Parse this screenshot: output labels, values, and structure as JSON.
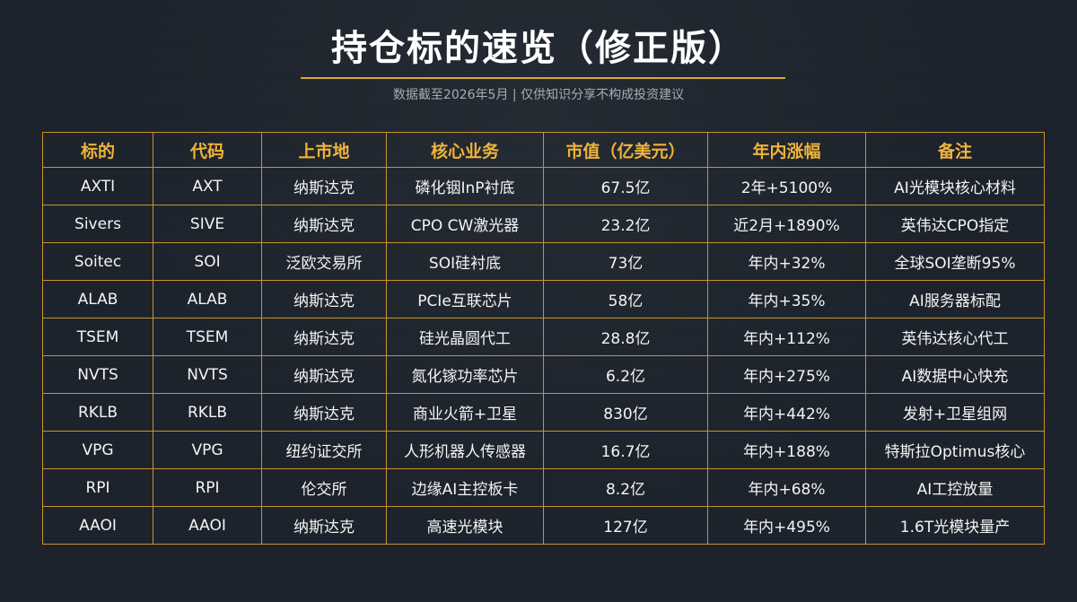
{
  "header": {
    "title": "持仓标的速览（修正版）",
    "subtitle": "数据截至2026年5月 | 仅供知识分享不构成投资建议"
  },
  "table": {
    "columns": [
      "标的",
      "代码",
      "上市地",
      "核心业务",
      "市值（亿美元）",
      "年内涨幅",
      "备注"
    ],
    "rows": [
      [
        "AXTI",
        "AXT",
        "纳斯达克",
        "磷化铟InP衬底",
        "67.5亿",
        "2年+5100%",
        "AI光模块核心材料"
      ],
      [
        "Sivers",
        "SIVE",
        "纳斯达克",
        "CPO CW激光器",
        "23.2亿",
        "近2月+1890%",
        "英伟达CPO指定"
      ],
      [
        "Soitec",
        "SOI",
        "泛欧交易所",
        "SOI硅衬底",
        "73亿",
        "年内+32%",
        "全球SOI垄断95%"
      ],
      [
        "ALAB",
        "ALAB",
        "纳斯达克",
        "PCIe互联芯片",
        "58亿",
        "年内+35%",
        "AI服务器标配"
      ],
      [
        "TSEM",
        "TSEM",
        "纳斯达克",
        "硅光晶圆代工",
        "28.8亿",
        "年内+112%",
        "英伟达核心代工"
      ],
      [
        "NVTS",
        "NVTS",
        "纳斯达克",
        "氮化镓功率芯片",
        "6.2亿",
        "年内+275%",
        "AI数据中心快充"
      ],
      [
        "RKLB",
        "RKLB",
        "纳斯达克",
        "商业火箭+卫星",
        "830亿",
        "年内+442%",
        "发射+卫星组网"
      ],
      [
        "VPG",
        "VPG",
        "纽约证交所",
        "人形机器人传感器",
        "16.7亿",
        "年内+188%",
        "特斯拉Optimus核心"
      ],
      [
        "RPI",
        "RPI",
        "伦交所",
        "边缘AI主控板卡",
        "8.2亿",
        "年内+68%",
        "AI工控放量"
      ],
      [
        "AAOI",
        "AAOI",
        "纳斯达克",
        "高速光模块",
        "127亿",
        "年内+495%",
        "1.6T光模块量产"
      ]
    ]
  },
  "colors": {
    "background": "#1c222b",
    "accent": "#d9a63c",
    "header_text": "#efb33a",
    "cell_text": "#f4f4f4"
  }
}
